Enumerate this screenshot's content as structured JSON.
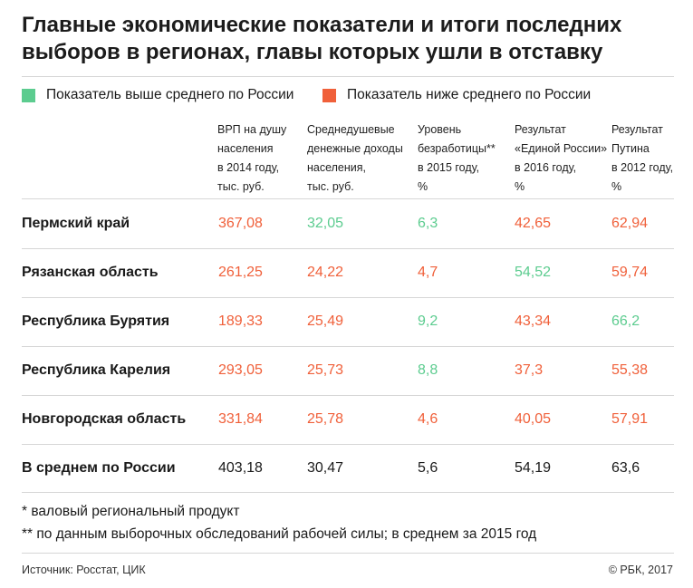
{
  "title": "Главные экономические показатели и итоги последних выборов в регионах, главы которых ушли в отставку",
  "colors": {
    "above": "#5ccc8f",
    "below": "#f0603a",
    "neutral": "#1a1a1a"
  },
  "legend": [
    {
      "label": "Показатель выше среднего по России",
      "color": "#5ccc8f"
    },
    {
      "label": "Показатель ниже среднего по России",
      "color": "#f0603a"
    }
  ],
  "columns": [
    [
      "ВРП на душу",
      "населения",
      "в 2014 году,",
      "тыс. руб."
    ],
    [
      "Среднедушевые",
      "денежные доходы",
      "населения,",
      "тыс. руб."
    ],
    [
      "Уровень",
      "безработицы**",
      "в 2015 году,",
      "%"
    ],
    [
      "Результат",
      "«Единой России»",
      "в 2016 году,",
      "%"
    ],
    [
      "Результат",
      "Путина",
      "в 2012 году,",
      "%"
    ]
  ],
  "chart_data": {
    "type": "table",
    "title": "Главные экономические показатели и итоги последних выборов в регионах, главы которых ушли в отставку",
    "columns": [
      "ВРП на душу населения в 2014 году, тыс. руб.",
      "Среднедушевые денежные доходы населения, тыс. руб.",
      "Уровень безработицы** в 2015 году, %",
      "Результат «Единой России» в 2016 году, %",
      "Результат Путина в 2012 году, %"
    ],
    "rows": [
      {
        "region": "Пермский край",
        "values": [
          "367,08",
          "32,05",
          "6,3",
          "42,65",
          "62,94"
        ],
        "status": [
          "below",
          "above",
          "above",
          "below",
          "below"
        ]
      },
      {
        "region": "Рязанская область",
        "values": [
          "261,25",
          "24,22",
          "4,7",
          "54,52",
          "59,74"
        ],
        "status": [
          "below",
          "below",
          "below",
          "above",
          "below"
        ]
      },
      {
        "region": "Республика Бурятия",
        "values": [
          "189,33",
          "25,49",
          "9,2",
          "43,34",
          "66,2"
        ],
        "status": [
          "below",
          "below",
          "above",
          "below",
          "above"
        ]
      },
      {
        "region": "Республика Карелия",
        "values": [
          "293,05",
          "25,73",
          "8,8",
          "37,3",
          "55,38"
        ],
        "status": [
          "below",
          "below",
          "above",
          "below",
          "below"
        ]
      },
      {
        "region": "Новгородская область",
        "values": [
          "331,84",
          "25,78",
          "4,6",
          "40,05",
          "57,91"
        ],
        "status": [
          "below",
          "below",
          "below",
          "below",
          "below"
        ]
      },
      {
        "region": "В среднем по России",
        "values": [
          "403,18",
          "30,47",
          "5,6",
          "54,19",
          "63,6"
        ],
        "status": [
          "neutral",
          "neutral",
          "neutral",
          "neutral",
          "neutral"
        ]
      }
    ]
  },
  "footnotes": [
    "* валовый региональный продукт",
    "** по данным выборочных обследований рабочей силы; в среднем за 2015 год"
  ],
  "source": "Источник: Росстат, ЦИК",
  "copyright": "© РБК, 2017"
}
